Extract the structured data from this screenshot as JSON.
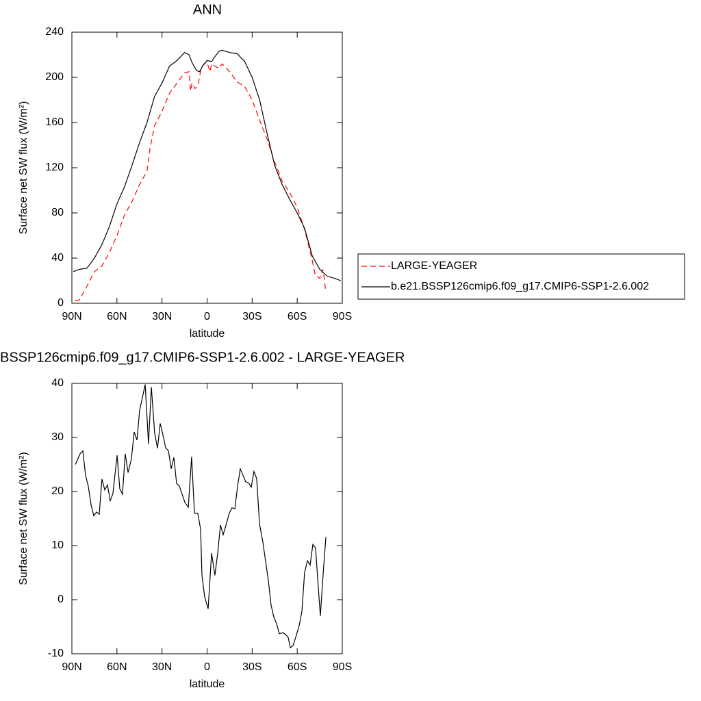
{
  "chart_data": [
    {
      "type": "line",
      "title": "ANN",
      "xlabel": "latitude",
      "ylabel": "Surface net SW flux (W/m²)",
      "xlim": [
        90,
        -90
      ],
      "xticks": [
        {
          "value": 90,
          "label": "90N"
        },
        {
          "value": 60,
          "label": "60N"
        },
        {
          "value": 30,
          "label": "30N"
        },
        0,
        {
          "value": -30,
          "label": "30S"
        },
        {
          "value": -60,
          "label": "60S"
        },
        {
          "value": -90,
          "label": "90S"
        }
      ],
      "ylim": [
        0,
        240
      ],
      "yticks": [
        0,
        40,
        80,
        120,
        160,
        200,
        240
      ],
      "legend": "right",
      "series": [
        {
          "name": "LARGE-YEAGER",
          "color": "#ff0000",
          "dashed": true,
          "x": [
            88,
            85,
            80,
            75,
            70,
            65,
            60,
            55,
            50,
            45,
            40,
            38,
            35,
            30,
            25,
            20,
            15,
            12,
            11,
            10,
            8,
            6,
            4,
            2,
            0,
            -2,
            -3,
            -5,
            -8,
            -10,
            -15,
            -20,
            -25,
            -30,
            -35,
            -40,
            -45,
            -50,
            -55,
            -60,
            -65,
            -70,
            -72,
            -75,
            -77,
            -78,
            -79
          ],
          "values": [
            2,
            3,
            15,
            28,
            33,
            45,
            60,
            78,
            90,
            105,
            117,
            137,
            157,
            170,
            186,
            195,
            204,
            205,
            188,
            195,
            190,
            193,
            208,
            212,
            213,
            205,
            212,
            210,
            208,
            212,
            205,
            196,
            192,
            180,
            162,
            145,
            125,
            108,
            98,
            85,
            65,
            38,
            25,
            22,
            30,
            22,
            10
          ]
        },
        {
          "name": "b.e21.BSSP126cmip6.f09_g17.CMIP6-SSP1-2.6.002",
          "color": "#000000",
          "dashed": false,
          "x": [
            89,
            85,
            80,
            75,
            70,
            65,
            60,
            55,
            50,
            45,
            40,
            35,
            30,
            25,
            20,
            15,
            12,
            10,
            7,
            5,
            3,
            0,
            -3,
            -5,
            -8,
            -10,
            -15,
            -20,
            -25,
            -30,
            -35,
            -40,
            -45,
            -50,
            -55,
            -60,
            -65,
            -70,
            -75,
            -80,
            -85,
            -89
          ],
          "values": [
            28,
            30,
            31,
            40,
            52,
            68,
            88,
            103,
            122,
            142,
            160,
            183,
            195,
            210,
            215,
            222,
            220,
            213,
            206,
            205,
            210,
            215,
            214,
            218,
            223,
            224,
            222,
            221,
            214,
            200,
            180,
            150,
            122,
            105,
            92,
            80,
            66,
            42,
            30,
            24,
            22,
            20
          ]
        }
      ]
    },
    {
      "type": "line",
      "title": "BSSP126cmip6.f09_g17.CMIP6-SSP1-2.6.002 - LARGE-YEAGER",
      "xlabel": "latitude",
      "ylabel": "Surface net SW flux (W/m²)",
      "xlim": [
        90,
        -90
      ],
      "xticks": [
        {
          "value": 90,
          "label": "90N"
        },
        {
          "value": 60,
          "label": "60N"
        },
        {
          "value": 30,
          "label": "30N"
        },
        0,
        {
          "value": -30,
          "label": "30S"
        },
        {
          "value": -60,
          "label": "60S"
        },
        {
          "value": -90,
          "label": "90S"
        }
      ],
      "ylim": [
        -10,
        40
      ],
      "yticks": [
        -10,
        0,
        10,
        20,
        30,
        40
      ],
      "color": "#000000",
      "x": [
        87.7,
        84.5,
        82.7,
        80.9,
        79.1,
        77.2,
        75.4,
        73.6,
        71.8,
        70.0,
        68.1,
        66.3,
        64.5,
        62.7,
        59.9,
        58.1,
        56.3,
        54.5,
        52.6,
        50.4,
        48.5,
        46.7,
        44.9,
        41.2,
        39.0,
        37.1,
        34.9,
        33.0,
        31.2,
        29.4,
        27.6,
        25.7,
        23.9,
        22.1,
        20.3,
        18.5,
        16.6,
        14.8,
        12.5,
        10.3,
        8.4,
        6.2,
        4.3,
        3.4,
        1.6,
        -0.7,
        -3.0,
        -5.2,
        -7.1,
        -8.9,
        -10.7,
        -12.6,
        -14.8,
        -16.6,
        -18.5,
        -20.3,
        -22.1,
        -23.9,
        -25.7,
        -27.6,
        -29.4,
        -31.2,
        -33.0,
        -34.9,
        -37.1,
        -39.0,
        -40.8,
        -42.6,
        -44.4,
        -46.3,
        -48.1,
        -50.4,
        -52.2,
        -54.0,
        -55.4,
        -57.2,
        -59.5,
        -61.3,
        -63.1,
        -64.9,
        -66.8,
        -68.6,
        -70.4,
        -72.2,
        -74.1,
        -75.4,
        -77.2,
        -79.1
      ],
      "values": [
        25,
        27,
        27.5,
        23,
        21,
        17.5,
        15.5,
        16.2,
        15.8,
        22.3,
        20.3,
        21.2,
        18.3,
        19.6,
        26.7,
        20.5,
        19.5,
        27,
        23.5,
        26,
        31,
        29.5,
        35,
        39.8,
        28.8,
        39.3,
        30.8,
        28,
        32.6,
        30.5,
        28.1,
        27.5,
        24.2,
        26.3,
        21.5,
        21,
        19.5,
        18,
        17.1,
        26.4,
        16,
        16,
        13,
        4.5,
        0.5,
        -1.7,
        8.6,
        4.5,
        8.7,
        13.8,
        12,
        13.8,
        16,
        17,
        16.8,
        21,
        24.2,
        23,
        21.8,
        21.6,
        20.8,
        23.7,
        22.4,
        14,
        10.7,
        7,
        3.5,
        -1,
        -3.2,
        -4.5,
        -6.3,
        -6.1,
        -6.4,
        -7,
        -8.9,
        -8.5,
        -6.5,
        -4.8,
        -2.2,
        5,
        7.2,
        6.4,
        10.2,
        9.6,
        2,
        -3,
        4.5,
        11.6
      ]
    }
  ]
}
